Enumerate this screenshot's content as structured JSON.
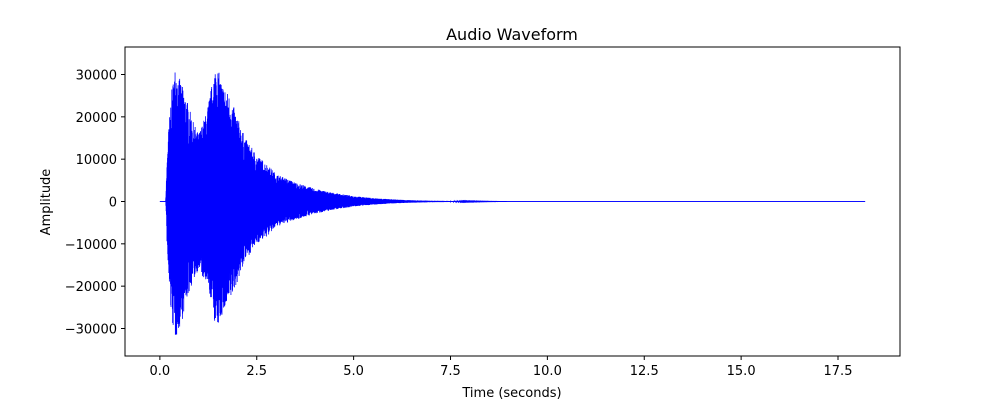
{
  "chart_data": {
    "type": "line",
    "title": "Audio Waveform",
    "xlabel": "Time (seconds)",
    "ylabel": "Amplitude",
    "xlim": [
      -0.9,
      19.1
    ],
    "ylim": [
      -36500,
      36500
    ],
    "xticks": [
      0.0,
      2.5,
      5.0,
      7.5,
      10.0,
      12.5,
      15.0,
      17.5
    ],
    "xtick_labels": [
      "0.0",
      "2.5",
      "5.0",
      "7.5",
      "10.0",
      "12.5",
      "15.0",
      "17.5"
    ],
    "yticks": [
      30000,
      20000,
      10000,
      0,
      -10000,
      -20000,
      -30000
    ],
    "ytick_labels": [
      "30000",
      "20000",
      "10000",
      "0",
      "−10000",
      "−20000",
      "−30000"
    ],
    "grid": false,
    "series": [
      {
        "color": "#0000ff",
        "x_start": 0.0,
        "x_end": 18.2,
        "envelope_x": [
          0.0,
          0.15,
          0.2,
          0.3,
          0.4,
          0.55,
          0.7,
          0.85,
          1.0,
          1.2,
          1.35,
          1.45,
          1.6,
          1.8,
          2.0,
          2.2,
          2.5,
          2.8,
          3.0,
          3.5,
          4.0,
          4.5,
          5.0,
          5.5,
          6.0,
          6.5,
          7.0,
          7.5,
          8.0,
          8.5,
          9.0,
          18.2
        ],
        "envelope_max": [
          0,
          0,
          14000,
          26000,
          32000,
          28000,
          24000,
          19000,
          16000,
          21000,
          28000,
          33000,
          28000,
          25000,
          20000,
          15000,
          11000,
          8500,
          6500,
          4500,
          3000,
          2000,
          1300,
          800,
          500,
          300,
          180,
          100,
          50,
          20,
          0,
          0
        ],
        "envelope_min": [
          0,
          0,
          -15000,
          -28000,
          -32500,
          -29000,
          -23000,
          -19000,
          -16000,
          -20000,
          -24000,
          -31000,
          -27000,
          -24000,
          -19000,
          -14000,
          -10000,
          -8000,
          -6000,
          -4300,
          -2900,
          -1900,
          -1200,
          -750,
          -450,
          -280,
          -170,
          -90,
          -45,
          -18,
          0,
          0
        ]
      }
    ]
  }
}
